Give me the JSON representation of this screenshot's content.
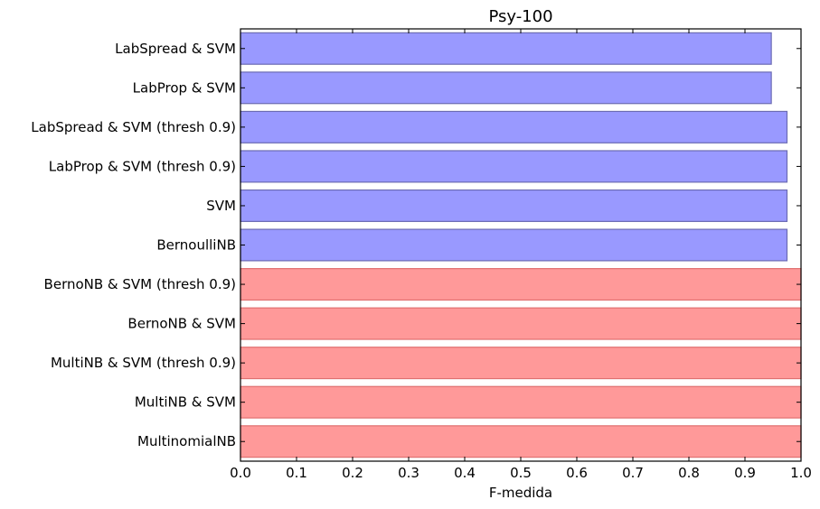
{
  "chart_data": {
    "type": "bar",
    "orientation": "horizontal",
    "title": "Psy-100",
    "xlabel": "F-medida",
    "ylabel": "",
    "xlim": [
      0.0,
      1.0
    ],
    "xticks": [
      "0.0",
      "0.1",
      "0.2",
      "0.3",
      "0.4",
      "0.5",
      "0.6",
      "0.7",
      "0.8",
      "0.9",
      "1.0"
    ],
    "grid": false,
    "categories": [
      "LabSpread & SVM",
      "LabProp & SVM",
      "LabSpread & SVM (thresh 0.9)",
      "LabProp & SVM (thresh 0.9)",
      "SVM",
      "BernoulliNB",
      "BernoNB & SVM (thresh 0.9)",
      "BernoNB & SVM",
      "MultiNB & SVM (thresh 0.9)",
      "MultiNB & SVM",
      "MultinomialNB"
    ],
    "values": [
      0.947,
      0.947,
      0.975,
      0.975,
      0.975,
      0.975,
      1.0,
      1.0,
      1.0,
      1.0,
      1.0
    ],
    "bar_colors": [
      "#9999ff",
      "#9999ff",
      "#9999ff",
      "#9999ff",
      "#9999ff",
      "#9999ff",
      "#ff9999",
      "#ff9999",
      "#ff9999",
      "#ff9999",
      "#ff9999"
    ],
    "bar_edge_colors": [
      "#6b6bb3",
      "#6b6bb3",
      "#6b6bb3",
      "#6b6bb3",
      "#6b6bb3",
      "#6b6bb3",
      "#e07070",
      "#e07070",
      "#e07070",
      "#e07070",
      "#e07070"
    ]
  }
}
